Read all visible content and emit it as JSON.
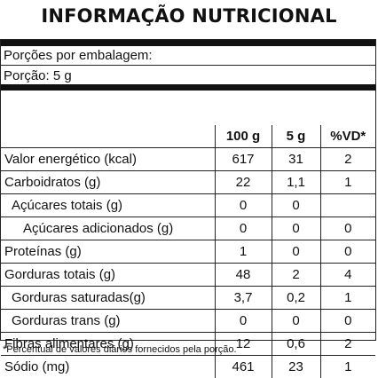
{
  "title": "INFORMAÇÃO NUTRICIONAL",
  "servings_per_package": "Porções por embalagem:",
  "serving_size": "Porção: 5 g",
  "table": {
    "headers": [
      "",
      "100 g",
      "5 g",
      "%VD*"
    ],
    "rows": [
      {
        "label": "Valor energético (kcal)",
        "v100": "617",
        "v5": "31",
        "vd": "2"
      },
      {
        "label": "Carboidratos (g)",
        "v100": "22",
        "v5": "1,1",
        "vd": "1"
      },
      {
        "label": "Açúcares totais (g)",
        "v100": "0",
        "v5": "0",
        "vd": ""
      },
      {
        "label": "Açúcares adicionados (g)",
        "v100": "0",
        "v5": "0",
        "vd": "0"
      },
      {
        "label": "Proteínas (g)",
        "v100": "1",
        "v5": "0",
        "vd": "0"
      },
      {
        "label": "Gorduras totais (g)",
        "v100": "48",
        "v5": "2",
        "vd": "4"
      },
      {
        "label": "Gorduras saturadas(g)",
        "v100": "3,7",
        "v5": "0,2",
        "vd": "1"
      },
      {
        "label": "Gorduras trans (g)",
        "v100": "0",
        "v5": "0",
        "vd": "0"
      },
      {
        "label": "Fibras alimentares (g)",
        "v100": "12",
        "v5": "0,6",
        "vd": "2"
      },
      {
        "label": "Sódio (mg)",
        "v100": "461",
        "v5": "23",
        "vd": "1"
      }
    ]
  },
  "footnote": "*Percentual de valores diários fornecidos pela porção."
}
